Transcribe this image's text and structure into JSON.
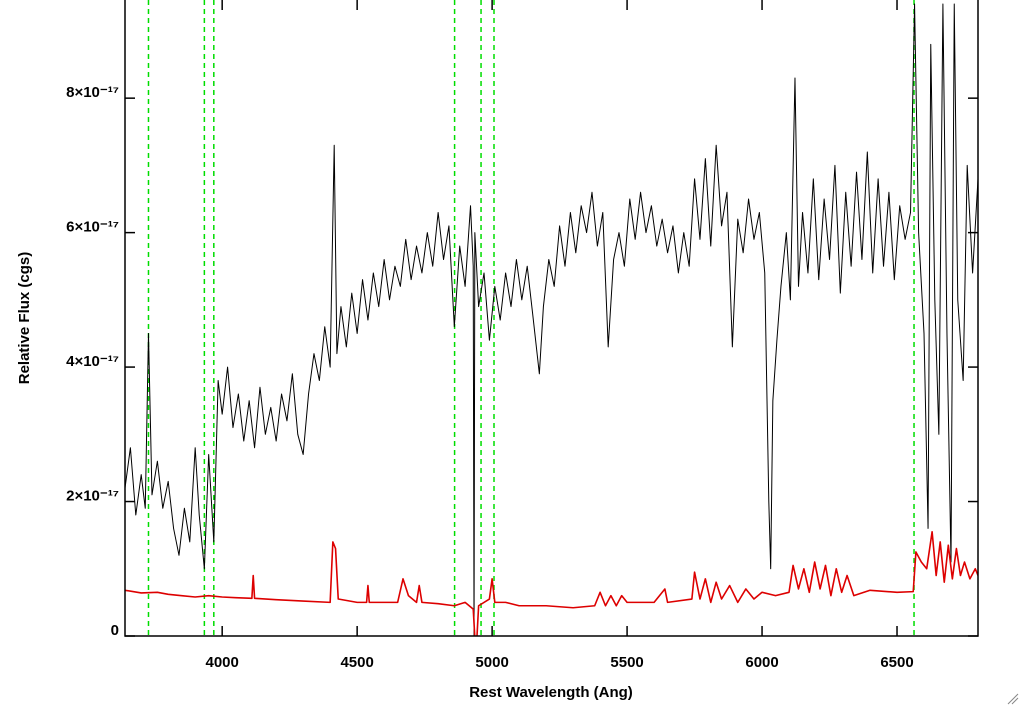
{
  "chart_data": {
    "type": "line",
    "xlabel": "Rest Wavelength (Ang)",
    "ylabel": "Relative Flux (cgs)",
    "xlim": [
      3640,
      6800
    ],
    "ylim": [
      0,
      9.46e-17
    ],
    "xticks": [
      4000,
      4500,
      5000,
      5500,
      6000,
      6500
    ],
    "yticks": [
      0,
      {
        "value": 2e-17,
        "label": "2×10⁻¹⁷"
      },
      {
        "value": 4e-17,
        "label": "4×10⁻¹⁷"
      },
      {
        "value": 6e-17,
        "label": "6×10⁻¹⁷"
      },
      {
        "value": 8e-17,
        "label": "8×10⁻¹⁷"
      }
    ],
    "vlines": {
      "color": "#00dd00",
      "values": [
        3727,
        3934,
        3969,
        4861,
        4959,
        5007,
        6563
      ]
    },
    "series": [
      {
        "color": "#000000",
        "x": [
          3640,
          3660,
          3680,
          3700,
          3715,
          3727,
          3740,
          3760,
          3780,
          3800,
          3820,
          3840,
          3860,
          3880,
          3900,
          3915,
          3934,
          3950,
          3969,
          3985,
          4000,
          4020,
          4040,
          4060,
          4080,
          4100,
          4120,
          4140,
          4160,
          4180,
          4200,
          4220,
          4240,
          4260,
          4280,
          4300,
          4320,
          4340,
          4360,
          4380,
          4400,
          4415,
          4425,
          4440,
          4460,
          4480,
          4500,
          4520,
          4540,
          4560,
          4580,
          4600,
          4620,
          4640,
          4660,
          4680,
          4700,
          4720,
          4740,
          4760,
          4780,
          4800,
          4820,
          4840,
          4860,
          4880,
          4900,
          4920,
          4930,
          4933,
          4936,
          4950,
          4970,
          4990,
          5010,
          5030,
          5050,
          5070,
          5090,
          5110,
          5130,
          5150,
          5175,
          5190,
          5210,
          5230,
          5250,
          5270,
          5290,
          5310,
          5330,
          5350,
          5370,
          5390,
          5410,
          5430,
          5450,
          5470,
          5490,
          5510,
          5530,
          5550,
          5570,
          5590,
          5610,
          5630,
          5650,
          5670,
          5690,
          5710,
          5730,
          5750,
          5770,
          5790,
          5810,
          5830,
          5850,
          5870,
          5890,
          5910,
          5930,
          5950,
          5970,
          5990,
          6010,
          6025,
          6032,
          6040,
          6055,
          6070,
          6090,
          6105,
          6122,
          6135,
          6150,
          6170,
          6190,
          6210,
          6230,
          6250,
          6270,
          6290,
          6310,
          6330,
          6350,
          6370,
          6390,
          6410,
          6430,
          6450,
          6470,
          6490,
          6510,
          6530,
          6550,
          6565,
          6580,
          6600,
          6615,
          6625,
          6640,
          6655,
          6670,
          6685,
          6700,
          6712,
          6725,
          6745,
          6760,
          6780,
          6800
        ],
        "values": [
          2.2e-17,
          2.8e-17,
          1.8e-17,
          2.4e-17,
          1.9e-17,
          4.5e-17,
          2.1e-17,
          2.6e-17,
          1.9e-17,
          2.3e-17,
          1.6e-17,
          1.2e-17,
          1.9e-17,
          1.4e-17,
          2.8e-17,
          1.8e-17,
          1e-17,
          2.7e-17,
          1.4e-17,
          3.8e-17,
          3.3e-17,
          4e-17,
          3.1e-17,
          3.6e-17,
          2.9e-17,
          3.5e-17,
          2.8e-17,
          3.7e-17,
          3e-17,
          3.4e-17,
          2.9e-17,
          3.6e-17,
          3.2e-17,
          3.9e-17,
          3e-17,
          2.7e-17,
          3.6e-17,
          4.2e-17,
          3.8e-17,
          4.6e-17,
          4e-17,
          7.3e-17,
          4.2e-17,
          4.9e-17,
          4.3e-17,
          5.1e-17,
          4.5e-17,
          5.3e-17,
          4.7e-17,
          5.4e-17,
          4.9e-17,
          5.6e-17,
          5e-17,
          5.5e-17,
          5.2e-17,
          5.9e-17,
          5.3e-17,
          5.8e-17,
          5.4e-17,
          6e-17,
          5.5e-17,
          6.3e-17,
          5.6e-17,
          6.1e-17,
          4.6e-17,
          5.8e-17,
          5.2e-17,
          6.4e-17,
          5.5e-17,
          0,
          6e-17,
          4.9e-17,
          5.4e-17,
          4.4e-17,
          5.2e-17,
          4.7e-17,
          5.4e-17,
          4.9e-17,
          5.6e-17,
          5e-17,
          5.5e-17,
          4.8e-17,
          3.9e-17,
          4.9e-17,
          5.6e-17,
          5.2e-17,
          6.1e-17,
          5.5e-17,
          6.3e-17,
          5.7e-17,
          6.4e-17,
          6e-17,
          6.6e-17,
          5.8e-17,
          6.3e-17,
          4.3e-17,
          5.6e-17,
          6e-17,
          5.5e-17,
          6.5e-17,
          5.9e-17,
          6.6e-17,
          6e-17,
          6.4e-17,
          5.8e-17,
          6.2e-17,
          5.7e-17,
          6.1e-17,
          5.4e-17,
          6e-17,
          5.5e-17,
          6.8e-17,
          5.9e-17,
          7.1e-17,
          5.8e-17,
          7.3e-17,
          6.1e-17,
          6.6e-17,
          4.3e-17,
          6.2e-17,
          5.7e-17,
          6.5e-17,
          5.9e-17,
          6.3e-17,
          5.4e-17,
          2e-17,
          1e-17,
          3.5e-17,
          4.4e-17,
          5.2e-17,
          6e-17,
          5e-17,
          8.3e-17,
          5.2e-17,
          6.3e-17,
          5.4e-17,
          6.8e-17,
          5.3e-17,
          6.5e-17,
          5.6e-17,
          7e-17,
          5.1e-17,
          6.6e-17,
          5.5e-17,
          6.9e-17,
          5.6e-17,
          7.2e-17,
          5.4e-17,
          6.8e-17,
          5.5e-17,
          6.6e-17,
          5.3e-17,
          6.4e-17,
          5.9e-17,
          6.3e-17,
          9.4e-17,
          6e-17,
          4.5e-17,
          1.6e-17,
          8.8e-17,
          5e-17,
          3e-17,
          9.4e-17,
          4.5e-17,
          1.1e-17,
          9.4e-17,
          5e-17,
          3.8e-17,
          7e-17,
          5.4e-17,
          6.8e-17
        ]
      },
      {
        "color": "#dd0000",
        "x": [
          3640,
          3700,
          3760,
          3800,
          3850,
          3900,
          3950,
          4000,
          4050,
          4110,
          4115,
          4120,
          4200,
          4300,
          4400,
          4410,
          4420,
          4430,
          4500,
          4535,
          4540,
          4545,
          4650,
          4670,
          4690,
          4720,
          4730,
          4740,
          4800,
          4860,
          4900,
          4930,
          4940,
          4950,
          4990,
          5000,
          5010,
          5050,
          5100,
          5200,
          5300,
          5380,
          5400,
          5420,
          5440,
          5460,
          5480,
          5500,
          5600,
          5640,
          5650,
          5740,
          5750,
          5770,
          5790,
          5810,
          5830,
          5850,
          5880,
          5910,
          5940,
          5970,
          6000,
          6050,
          6100,
          6115,
          6135,
          6155,
          6175,
          6195,
          6215,
          6235,
          6255,
          6275,
          6295,
          6315,
          6340,
          6400,
          6500,
          6560,
          6570,
          6590,
          6610,
          6630,
          6645,
          6660,
          6675,
          6690,
          6705,
          6720,
          6735,
          6750,
          6770,
          6790,
          6800
        ],
        "values": [
          6.8e-18,
          6.4e-18,
          6.5e-18,
          6.2e-18,
          6e-18,
          5.8e-18,
          6e-18,
          5.8e-18,
          5.7e-18,
          5.6e-18,
          9e-18,
          5.6e-18,
          5.4e-18,
          5.2e-18,
          5e-18,
          1.4e-17,
          1.3e-17,
          5.5e-18,
          5e-18,
          5e-18,
          7.5e-18,
          5e-18,
          5e-18,
          8.5e-18,
          6e-18,
          5e-18,
          7.5e-18,
          5e-18,
          4.8e-18,
          4.5e-18,
          5e-18,
          4e-18,
          -3e-18,
          4.5e-18,
          5.5e-18,
          8.5e-18,
          5e-18,
          5e-18,
          4.5e-18,
          4.5e-18,
          4.2e-18,
          4.5e-18,
          6.5e-18,
          4.5e-18,
          6e-18,
          4.5e-18,
          6e-18,
          5e-18,
          5e-18,
          7e-18,
          5e-18,
          5.5e-18,
          9.5e-18,
          5.5e-18,
          8.5e-18,
          5e-18,
          8e-18,
          5.5e-18,
          7.5e-18,
          5e-18,
          7e-18,
          5.5e-18,
          6.5e-18,
          6e-18,
          6.5e-18,
          1.05e-17,
          7e-18,
          1e-17,
          6.5e-18,
          1.1e-17,
          7e-18,
          1.05e-17,
          6e-18,
          1e-17,
          6.5e-18,
          9e-18,
          6e-18,
          6.8e-18,
          6.5e-18,
          6.6e-18,
          1.25e-17,
          1.1e-17,
          1e-17,
          1.55e-17,
          9e-18,
          1.4e-17,
          8e-18,
          1.35e-17,
          8.5e-18,
          1.3e-17,
          9e-18,
          1.1e-17,
          8.5e-18,
          1e-17,
          9e-18
        ]
      }
    ]
  }
}
